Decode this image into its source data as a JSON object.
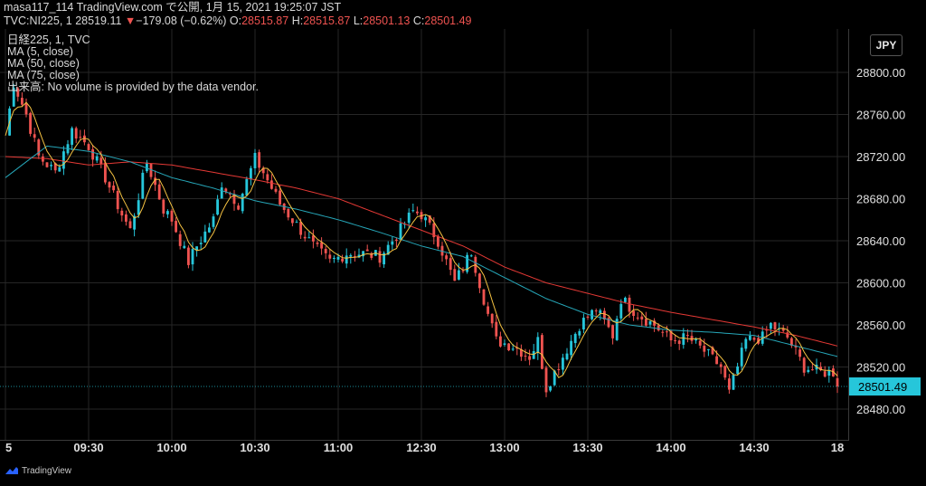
{
  "header": {
    "line1": "masa117_114 TradingView.com で公開, 1月 15, 2021 19:25:07 JST",
    "symbol": "TVC:NI225, 1",
    "last": "28519.11",
    "change": "−179.08 (−0.62%)",
    "o_label": "O:",
    "o_value": "28515.87",
    "h_label": "H:",
    "h_value": "28515.87",
    "l_label": "L:",
    "l_value": "28501.13",
    "c_label": "C:",
    "c_value": "28501.49"
  },
  "legend": {
    "series_title": "日経225, 1, TVC",
    "ma5": "MA (5, close)",
    "ma50": "MA (50, close)",
    "ma75": "MA (75, close)",
    "volume_note": "出来高: No volume is provided by the data vendor."
  },
  "currency_button": "JPY",
  "branding": "TradingView",
  "colors": {
    "up": "#26c6da",
    "down": "#ef5350",
    "ma5": "#f5c242",
    "ma50": "#26a6b8",
    "ma75": "#e53935",
    "price_label_bg": "#26c6da",
    "grid": "#262626"
  },
  "chart_data": {
    "type": "candlestick",
    "ylim": [
      28470,
      28845
    ],
    "y_ticks": [
      "28800.00",
      "28760.00",
      "28720.00",
      "28680.00",
      "28640.00",
      "28600.00",
      "28560.00",
      "28520.00",
      "28480.00"
    ],
    "y_tick_values": [
      28800,
      28760,
      28720,
      28680,
      28640,
      28600,
      28560,
      28520,
      28480
    ],
    "x_ticks": [
      "5",
      "09:30",
      "10:00",
      "10:30",
      "11:00",
      "12:30",
      "13:00",
      "13:30",
      "14:00",
      "14:30",
      "18"
    ],
    "x_tick_index": [
      0,
      20,
      40,
      60,
      80,
      100,
      120,
      140,
      160,
      180,
      200
    ],
    "current_price": "28501.49",
    "current_price_value": 28501.49,
    "close_path": [
      [
        0,
        28740
      ],
      [
        2,
        28790
      ],
      [
        5,
        28760
      ],
      [
        8,
        28720
      ],
      [
        12,
        28705
      ],
      [
        16,
        28745
      ],
      [
        20,
        28730
      ],
      [
        24,
        28700
      ],
      [
        28,
        28665
      ],
      [
        30,
        28650
      ],
      [
        34,
        28715
      ],
      [
        38,
        28670
      ],
      [
        40,
        28660
      ],
      [
        44,
        28620
      ],
      [
        46,
        28635
      ],
      [
        50,
        28660
      ],
      [
        52,
        28695
      ],
      [
        56,
        28675
      ],
      [
        60,
        28718
      ],
      [
        62,
        28705
      ],
      [
        66,
        28675
      ],
      [
        70,
        28655
      ],
      [
        74,
        28635
      ],
      [
        78,
        28620
      ],
      [
        82,
        28628
      ],
      [
        86,
        28628
      ],
      [
        90,
        28625
      ],
      [
        94,
        28645
      ],
      [
        98,
        28668
      ],
      [
        100,
        28665
      ],
      [
        104,
        28640
      ],
      [
        108,
        28600
      ],
      [
        112,
        28630
      ],
      [
        116,
        28570
      ],
      [
        118,
        28545
      ],
      [
        122,
        28540
      ],
      [
        126,
        28530
      ],
      [
        128,
        28545
      ],
      [
        130,
        28500
      ],
      [
        134,
        28530
      ],
      [
        138,
        28560
      ],
      [
        142,
        28575
      ],
      [
        146,
        28550
      ],
      [
        148,
        28585
      ],
      [
        152,
        28570
      ],
      [
        156,
        28560
      ],
      [
        160,
        28545
      ],
      [
        164,
        28548
      ],
      [
        168,
        28535
      ],
      [
        172,
        28520
      ],
      [
        174,
        28495
      ],
      [
        178,
        28545
      ],
      [
        182,
        28548
      ],
      [
        184,
        28560
      ],
      [
        188,
        28548
      ],
      [
        192,
        28520
      ],
      [
        196,
        28515
      ],
      [
        199,
        28515
      ],
      [
        200,
        28501.49
      ]
    ],
    "ma50_path": [
      [
        0,
        28700
      ],
      [
        5,
        28715
      ],
      [
        10,
        28730
      ],
      [
        20,
        28725
      ],
      [
        30,
        28715
      ],
      [
        40,
        28700
      ],
      [
        50,
        28690
      ],
      [
        60,
        28678
      ],
      [
        70,
        28670
      ],
      [
        80,
        28660
      ],
      [
        90,
        28648
      ],
      [
        100,
        28635
      ],
      [
        110,
        28625
      ],
      [
        120,
        28605
      ],
      [
        130,
        28585
      ],
      [
        140,
        28570
      ],
      [
        150,
        28560
      ],
      [
        160,
        28555
      ],
      [
        170,
        28553
      ],
      [
        180,
        28550
      ],
      [
        190,
        28540
      ],
      [
        200,
        28530
      ]
    ],
    "ma75_path": [
      [
        0,
        28720
      ],
      [
        10,
        28718
      ],
      [
        20,
        28712
      ],
      [
        30,
        28715
      ],
      [
        40,
        28712
      ],
      [
        50,
        28705
      ],
      [
        60,
        28698
      ],
      [
        70,
        28690
      ],
      [
        80,
        28680
      ],
      [
        90,
        28665
      ],
      [
        100,
        28650
      ],
      [
        110,
        28635
      ],
      [
        120,
        28615
      ],
      [
        130,
        28600
      ],
      [
        140,
        28590
      ],
      [
        150,
        28580
      ],
      [
        160,
        28572
      ],
      [
        170,
        28565
      ],
      [
        180,
        28558
      ],
      [
        190,
        28550
      ],
      [
        200,
        28540
      ]
    ]
  }
}
